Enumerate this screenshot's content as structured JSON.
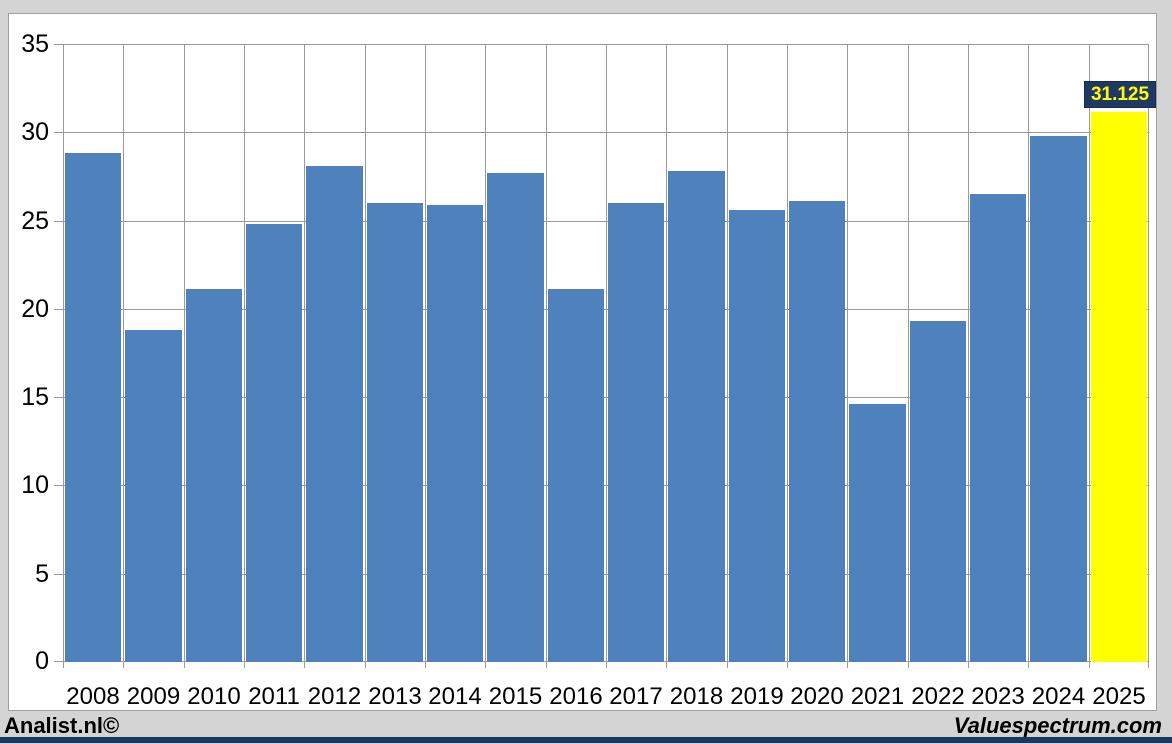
{
  "chart_data": {
    "type": "bar",
    "title": "",
    "xlabel": "",
    "ylabel": "",
    "categories": [
      "2008",
      "2009",
      "2010",
      "2011",
      "2012",
      "2013",
      "2014",
      "2015",
      "2016",
      "2017",
      "2018",
      "2019",
      "2020",
      "2021",
      "2022",
      "2023",
      "2024",
      "2025"
    ],
    "values": [
      28.8,
      18.8,
      21.1,
      24.8,
      28.1,
      26.0,
      25.9,
      27.7,
      21.1,
      26.0,
      27.8,
      25.6,
      26.1,
      14.6,
      19.3,
      26.5,
      29.8,
      31.125
    ],
    "highlight_index": 17,
    "highlight_label": "31.125",
    "ylim": [
      0,
      35
    ],
    "yticks": [
      0,
      5,
      10,
      15,
      20,
      25,
      30,
      35
    ],
    "grid": true,
    "legend": "none",
    "bar_color": "#4f81bd",
    "highlight_bar_color": "#ffff00",
    "callout_bg": "#1f3864",
    "callout_text_color": "#ffff00"
  },
  "footer": {
    "left_text": "Analist.nl©",
    "right_text": "Valuespectrum.com"
  },
  "colors": {
    "background": "#d4d4d4",
    "panel": "#ffffff",
    "gridline": "#9a9a9a",
    "axis_text": "#000000",
    "bottom_strip": "#17375e"
  }
}
